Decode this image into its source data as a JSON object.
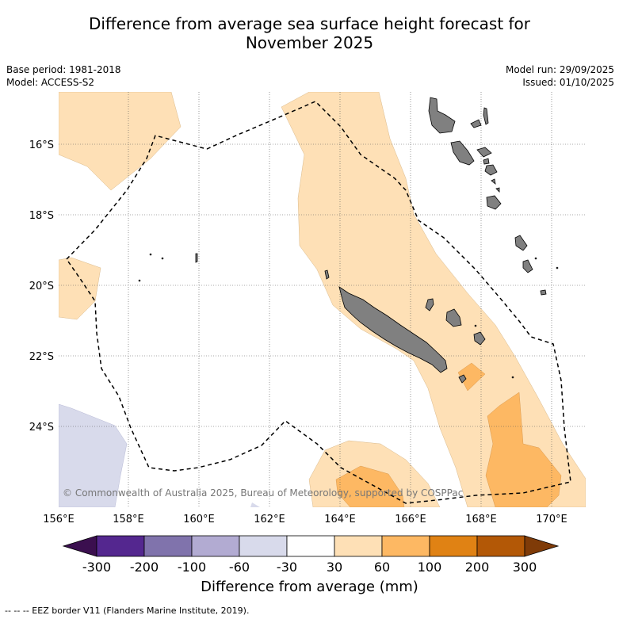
{
  "title_line1": "Difference from average sea surface height forecast for",
  "title_line2": "November 2025",
  "base_period": "Base period: 1981-2018",
  "model": "Model: ACCESS-S2",
  "model_run": "Model run: 29/09/2025",
  "issued": "Issued: 01/10/2025",
  "copyright": "© Commonwealth of Australia 2025, Bureau of Meteorology, supported by COSPPac",
  "lat_labels": [
    "16°S",
    "18°S",
    "20°S",
    "22°S",
    "24°S"
  ],
  "lon_labels": [
    "156°E",
    "158°E",
    "160°E",
    "162°E",
    "164°E",
    "166°E",
    "168°E",
    "170°E"
  ],
  "colorbar": {
    "title": "Difference from average (mm)",
    "tick_labels": [
      "-300",
      "-200",
      "-100",
      "-60",
      "-30",
      "30",
      "60",
      "100",
      "200",
      "300"
    ],
    "colors": [
      "#3b0f4f",
      "#54278f",
      "#8073ac",
      "#b2abd2",
      "#d8daeb",
      "#ffffff",
      "#fee0b6",
      "#fdb863",
      "#e08214",
      "#b35806",
      "#7f3b08"
    ]
  },
  "footer": "--  --  -- EEZ border V11 (Flanders Marine Institute, 2019).",
  "map_colors": {
    "land": "#808080",
    "light_orange": "#fee0b6",
    "mid_orange": "#fdb863",
    "light_purple": "#d8daeb",
    "grid": "#555555",
    "eez": "#000000"
  }
}
